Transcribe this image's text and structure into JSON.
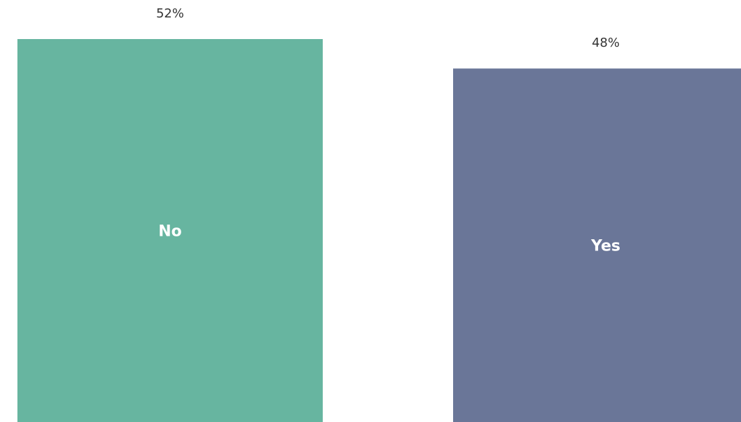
{
  "chart_data": {
    "type": "bar",
    "categories": [
      "No",
      "Yes"
    ],
    "values": [
      52,
      48
    ],
    "value_labels": [
      "52%",
      "48%"
    ],
    "colors": [
      "#67b5a0",
      "#6a7698"
    ]
  }
}
